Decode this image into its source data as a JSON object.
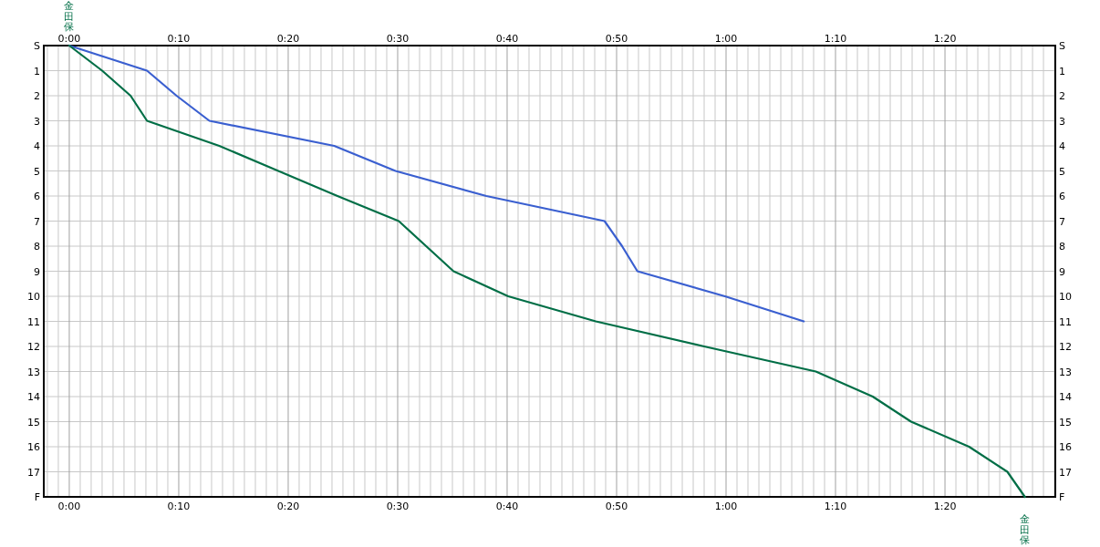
{
  "chart_data": {
    "type": "line",
    "orientation": "horizontal",
    "categories": [
      "S",
      "1",
      "2",
      "3",
      "4",
      "5",
      "6",
      "7",
      "8",
      "9",
      "10",
      "11",
      "12",
      "13",
      "14",
      "15",
      "16",
      "17",
      "F"
    ],
    "series": [
      {
        "color": "#3a5fd0",
        "values": [
          0,
          7.1,
          9.8,
          12.8,
          24.2,
          29.8,
          38.1,
          48.9,
          50.5,
          51.9,
          59.9,
          67.1,
          null,
          null,
          null,
          null,
          null,
          null,
          null
        ]
      },
      {
        "name": "金田保",
        "color": "#006e46",
        "values": [
          0,
          3.0,
          5.6,
          7.1,
          13.7,
          19.1,
          24.5,
          30.1,
          32.6,
          35.1,
          40.1,
          48.1,
          58.0,
          68.2,
          73.4,
          76.9,
          82.2,
          85.7,
          87.3
        ]
      }
    ],
    "xlim": [
      -2.33,
      90.08
    ],
    "xticks": [
      {
        "value": -2,
        "label": null
      },
      {
        "value": -1,
        "label": null
      },
      {
        "value": 0,
        "label": "0:00"
      },
      {
        "value": 1,
        "label": null
      },
      {
        "value": 2,
        "label": null
      },
      {
        "value": 3,
        "label": null
      },
      {
        "value": 4,
        "label": null
      },
      {
        "value": 5,
        "label": null
      },
      {
        "value": 6,
        "label": null
      },
      {
        "value": 7,
        "label": null
      },
      {
        "value": 8,
        "label": null
      },
      {
        "value": 9,
        "label": null
      },
      {
        "value": 10,
        "label": "0:10"
      },
      {
        "value": 11,
        "label": null
      },
      {
        "value": 12,
        "label": null
      },
      {
        "value": 13,
        "label": null
      },
      {
        "value": 14,
        "label": null
      },
      {
        "value": 15,
        "label": null
      },
      {
        "value": 16,
        "label": null
      },
      {
        "value": 17,
        "label": null
      },
      {
        "value": 18,
        "label": null
      },
      {
        "value": 19,
        "label": null
      },
      {
        "value": 20,
        "label": "0:20"
      },
      {
        "value": 21,
        "label": null
      },
      {
        "value": 22,
        "label": null
      },
      {
        "value": 23,
        "label": null
      },
      {
        "value": 24,
        "label": null
      },
      {
        "value": 25,
        "label": null
      },
      {
        "value": 26,
        "label": null
      },
      {
        "value": 27,
        "label": null
      },
      {
        "value": 28,
        "label": null
      },
      {
        "value": 29,
        "label": null
      },
      {
        "value": 30,
        "label": "0:30"
      },
      {
        "value": 31,
        "label": null
      },
      {
        "value": 32,
        "label": null
      },
      {
        "value": 33,
        "label": null
      },
      {
        "value": 34,
        "label": null
      },
      {
        "value": 35,
        "label": null
      },
      {
        "value": 36,
        "label": null
      },
      {
        "value": 37,
        "label": null
      },
      {
        "value": 38,
        "label": null
      },
      {
        "value": 39,
        "label": null
      },
      {
        "value": 40,
        "label": "0:40"
      },
      {
        "value": 41,
        "label": null
      },
      {
        "value": 42,
        "label": null
      },
      {
        "value": 43,
        "label": null
      },
      {
        "value": 44,
        "label": null
      },
      {
        "value": 45,
        "label": null
      },
      {
        "value": 46,
        "label": null
      },
      {
        "value": 47,
        "label": null
      },
      {
        "value": 48,
        "label": null
      },
      {
        "value": 49,
        "label": null
      },
      {
        "value": 50,
        "label": "0:50"
      },
      {
        "value": 51,
        "label": null
      },
      {
        "value": 52,
        "label": null
      },
      {
        "value": 53,
        "label": null
      },
      {
        "value": 54,
        "label": null
      },
      {
        "value": 55,
        "label": null
      },
      {
        "value": 56,
        "label": null
      },
      {
        "value": 57,
        "label": null
      },
      {
        "value": 58,
        "label": null
      },
      {
        "value": 59,
        "label": null
      },
      {
        "value": 60,
        "label": "1:00"
      },
      {
        "value": 61,
        "label": null
      },
      {
        "value": 62,
        "label": null
      },
      {
        "value": 63,
        "label": null
      },
      {
        "value": 64,
        "label": null
      },
      {
        "value": 65,
        "label": null
      },
      {
        "value": 66,
        "label": null
      },
      {
        "value": 67,
        "label": null
      },
      {
        "value": 68,
        "label": null
      },
      {
        "value": 69,
        "label": null
      },
      {
        "value": 70,
        "label": "1:10"
      },
      {
        "value": 71,
        "label": null
      },
      {
        "value": 72,
        "label": null
      },
      {
        "value": 73,
        "label": null
      },
      {
        "value": 74,
        "label": null
      },
      {
        "value": 75,
        "label": null
      },
      {
        "value": 76,
        "label": null
      },
      {
        "value": 77,
        "label": null
      },
      {
        "value": 78,
        "label": null
      },
      {
        "value": 79,
        "label": null
      },
      {
        "value": 80,
        "label": "1:20"
      },
      {
        "value": 81,
        "label": null
      },
      {
        "value": 82,
        "label": null
      },
      {
        "value": 83,
        "label": null
      },
      {
        "value": 84,
        "label": null
      },
      {
        "value": 85,
        "label": null
      },
      {
        "value": 86,
        "label": null
      },
      {
        "value": 87,
        "label": null
      },
      {
        "value": 88,
        "label": null
      },
      {
        "value": 89,
        "label": null
      },
      {
        "value": 90,
        "label": null
      }
    ],
    "x2lim": [
      -2.33,
      90.08
    ],
    "x2ticks": [
      {
        "value": 0,
        "label": "0:00"
      },
      {
        "value": 10,
        "label": "0:10"
      },
      {
        "value": 20,
        "label": "0:20"
      },
      {
        "value": 30,
        "label": "0:30"
      },
      {
        "value": 40,
        "label": "0:40"
      },
      {
        "value": 50,
        "label": "0:50"
      },
      {
        "value": 60,
        "label": "1:00"
      },
      {
        "value": 70,
        "label": "1:10"
      },
      {
        "value": 80,
        "label": "1:20"
      }
    ],
    "grid": true,
    "legend": false,
    "line_style": "solid",
    "marker": "none"
  }
}
